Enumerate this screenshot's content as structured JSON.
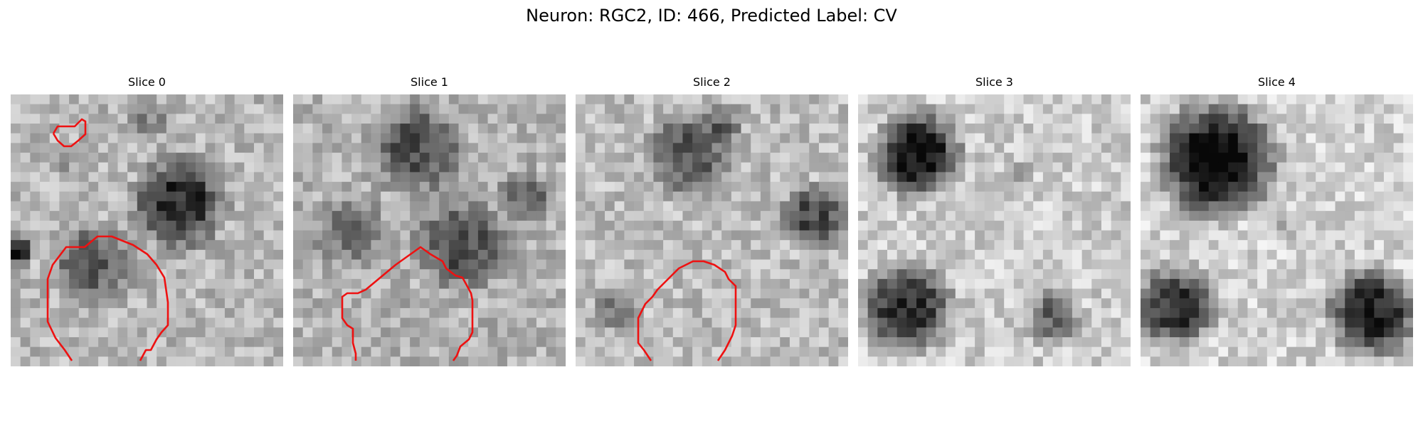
{
  "figure": {
    "title": "Neuron: RGC2, ID: 466, Predicted Label: CV"
  },
  "contour_color": "#ee1111",
  "panels": [
    {
      "label": "Slice 0"
    },
    {
      "label": "Slice 1"
    },
    {
      "label": "Slice 2"
    },
    {
      "label": "Slice 3"
    },
    {
      "label": "Slice 4"
    }
  ]
}
